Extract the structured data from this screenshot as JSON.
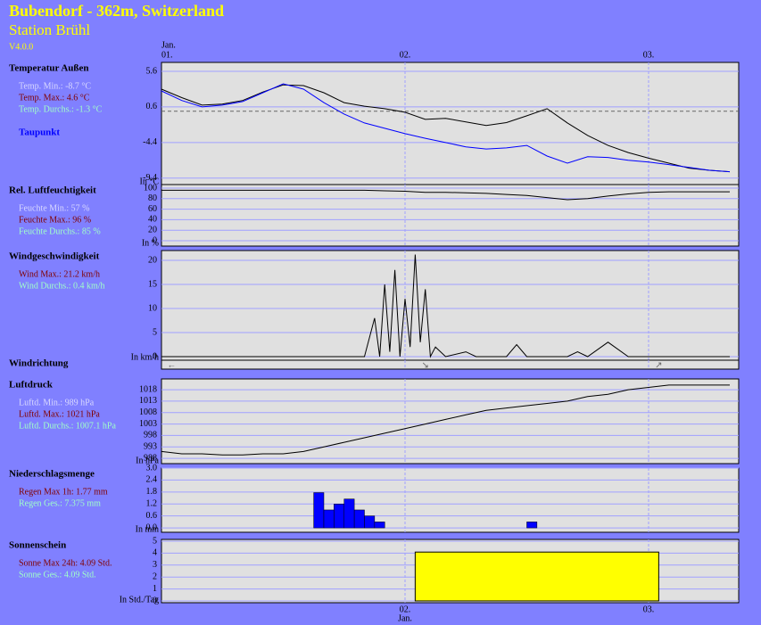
{
  "header": {
    "title": "Bubendorf - 362m, Switzerland",
    "subtitle": "Station Brühl",
    "version": "V4.0.0"
  },
  "time_axis": {
    "xlim": [
      0,
      56.88
    ],
    "month": "Jan.",
    "xticks": [
      {
        "value": 0,
        "label": "01."
      },
      {
        "value": 24,
        "label": "02."
      },
      {
        "value": 48,
        "label": "03."
      }
    ]
  },
  "chart_data": [
    {
      "type": "line",
      "title": "Temperatur Außen",
      "unit": "In °C",
      "stats": [
        {
          "text": "Temp. Min.: -8.7 °C",
          "color": "#d8d8ff"
        },
        {
          "text": "Temp. Max.: 4.6 °C",
          "color": "#800000"
        },
        {
          "text": "Temp. Durchs.: -1.3 °C",
          "color": "#a0ffc8"
        }
      ],
      "ylim": [
        -10.3,
        6.85
      ],
      "yticks": [
        5.6,
        0.6,
        -4.4,
        -9.4
      ],
      "reference_line": 0,
      "x": [
        0,
        2,
        4,
        6,
        8,
        10,
        12,
        14,
        16,
        18,
        20,
        22,
        24,
        26,
        28,
        30,
        32,
        34,
        36,
        38,
        40,
        42,
        44,
        46,
        48,
        50,
        52,
        54,
        56
      ],
      "series": [
        {
          "color": "#000000",
          "values": [
            3.1,
            1.9,
            0.85,
            1.0,
            1.5,
            2.7,
            3.7,
            3.6,
            2.6,
            1.2,
            0.7,
            0.35,
            -0.15,
            -1.15,
            -1.0,
            -1.5,
            -2.0,
            -1.6,
            -0.65,
            0.35,
            -1.65,
            -3.4,
            -4.8,
            -5.8,
            -6.6,
            -7.3,
            -8.0,
            -8.3,
            -8.5
          ]
        },
        {
          "name": "Taupunkt",
          "color": "#0000ff",
          "values": [
            2.85,
            1.5,
            0.6,
            0.85,
            1.35,
            2.6,
            3.85,
            3.1,
            1.2,
            -0.4,
            -1.65,
            -2.4,
            -3.15,
            -3.8,
            -4.4,
            -5.0,
            -5.3,
            -5.15,
            -4.8,
            -6.3,
            -7.3,
            -6.4,
            -6.5,
            -6.9,
            -7.15,
            -7.5,
            -7.9,
            -8.3,
            -8.5
          ]
        }
      ]
    },
    {
      "type": "line",
      "title": "Rel. Luftfeuchtigkeit",
      "unit": "In %",
      "stats": [
        {
          "text": "Feuchte Min.: 57 %",
          "color": "#d8d8ff"
        },
        {
          "text": "Feuchte Max.: 96 %",
          "color": "#800000"
        },
        {
          "text": "Feuchte Durchs.: 85 %",
          "color": "#a0ffc8"
        }
      ],
      "ylim": [
        -10.2,
        106.8
      ],
      "yticks": [
        100,
        80,
        60,
        40,
        20,
        0
      ],
      "x": [
        0,
        2,
        4,
        6,
        8,
        10,
        12,
        14,
        16,
        18,
        20,
        22,
        24,
        26,
        28,
        30,
        32,
        34,
        36,
        38,
        40,
        42,
        44,
        46,
        48,
        50,
        52,
        54,
        56
      ],
      "series": [
        {
          "color": "#000000",
          "values": [
            96,
            96,
            96,
            96,
            96,
            96,
            96,
            96,
            96,
            96,
            96,
            95,
            94,
            92,
            92,
            91,
            90,
            88,
            86,
            82,
            78,
            80,
            85,
            89,
            92,
            93,
            93,
            93,
            93
          ]
        }
      ]
    },
    {
      "type": "line",
      "title": "Windgeschwindigkeit",
      "unit": "In km/h",
      "stats": [
        {
          "text": "Wind Max.: 21.2 km/h",
          "color": "#800000"
        },
        {
          "text": "Wind Durchs.: 0.4 km/h",
          "color": "#a0ffc8"
        }
      ],
      "ylim": [
        -0.74,
        22.04
      ],
      "yticks": [
        20,
        15,
        10,
        5,
        0
      ],
      "x": [
        0,
        2,
        4,
        6,
        8,
        10,
        12,
        14,
        16,
        18,
        19,
        20,
        21,
        21.5,
        22,
        22.5,
        23,
        23.5,
        24,
        24.5,
        25,
        25.5,
        26,
        26.5,
        27,
        28,
        30,
        31,
        32,
        34,
        35,
        36,
        38,
        40,
        41,
        42,
        44,
        46,
        48,
        50,
        52,
        54,
        56
      ],
      "series": [
        {
          "color": "#000000",
          "values": [
            0,
            0,
            0,
            0,
            0,
            0,
            0,
            0,
            0,
            0,
            0,
            0,
            8,
            0,
            15,
            1,
            18,
            0,
            12,
            2,
            21.2,
            3,
            14,
            0,
            2,
            0,
            1,
            0,
            0,
            0,
            2.5,
            0,
            0,
            0,
            1,
            0,
            3,
            0,
            0,
            0,
            0,
            0,
            0
          ]
        }
      ]
    },
    {
      "type": "arrows",
      "title": "Windrichtung",
      "x": [
        1,
        26,
        49
      ],
      "labels": [
        "←",
        "↘",
        "↗"
      ]
    },
    {
      "type": "line",
      "title": "Luftdruck",
      "unit": "In hPa",
      "stats": [
        {
          "text": "Luftd. Min.: 989 hPa",
          "color": "#d8d8ff"
        },
        {
          "text": "Luftd. Max.: 1021 hPa",
          "color": "#800000"
        },
        {
          "text": "Luftd. Durchs.: 1007.1 hPa",
          "color": "#a0ffc8"
        }
      ],
      "ylim": [
        985.7,
        1022.7
      ],
      "yticks": [
        1018,
        1013,
        1008,
        1003,
        998,
        993,
        988
      ],
      "x": [
        0,
        2,
        4,
        6,
        8,
        10,
        12,
        14,
        16,
        18,
        20,
        22,
        24,
        26,
        28,
        30,
        32,
        34,
        36,
        38,
        40,
        42,
        44,
        46,
        48,
        50,
        52,
        54,
        56
      ],
      "series": [
        {
          "color": "#000000",
          "values": [
            991,
            990,
            990,
            989.5,
            989.5,
            990,
            990,
            991,
            993,
            995,
            997,
            999,
            1001,
            1003,
            1005,
            1007,
            1009,
            1010,
            1011,
            1012,
            1013,
            1015,
            1016,
            1018,
            1019,
            1020,
            1020,
            1020,
            1020
          ]
        }
      ]
    },
    {
      "type": "bar",
      "title": "Niederschlagsmenge",
      "unit": "In mm",
      "color": "#0000ff",
      "stats": [
        {
          "text": "Regen Max 1h: 1.77 mm",
          "color": "#800000"
        },
        {
          "text": "Regen Ges.: 7.375 mm",
          "color": "#a0ffc8"
        }
      ],
      "ylim": [
        -0.22,
        3.0
      ],
      "yticks": [
        {
          "value": 3,
          "label": "3.0"
        },
        {
          "value": 2.4,
          "label": "2.4"
        },
        {
          "value": 1.8,
          "label": "1.8"
        },
        {
          "value": 1.2,
          "label": "1.2"
        },
        {
          "value": 0.6,
          "label": "0.6"
        },
        {
          "value": 0,
          "label": "0.0"
        }
      ],
      "x": [
        15,
        16,
        17,
        18,
        19,
        20,
        21,
        36
      ],
      "values": [
        1.77,
        0.9,
        1.2,
        1.45,
        0.9,
        0.6,
        0.3,
        0.3
      ]
    },
    {
      "type": "histogram",
      "title": "Sonnenschein",
      "unit": "In Std./Tag",
      "color": "#ffff00",
      "stats": [
        {
          "text": "Sonne Max 24h: 4.09 Std.",
          "color": "#800000"
        },
        {
          "text": "Sonne Ges.: 4.09 Std.",
          "color": "#a0ffc8"
        }
      ],
      "ylim": [
        -0.15,
        5.15
      ],
      "yticks": [
        5,
        4,
        3,
        2,
        1,
        0
      ],
      "bins": [
        25,
        49
      ],
      "values": [
        4.09
      ]
    }
  ]
}
